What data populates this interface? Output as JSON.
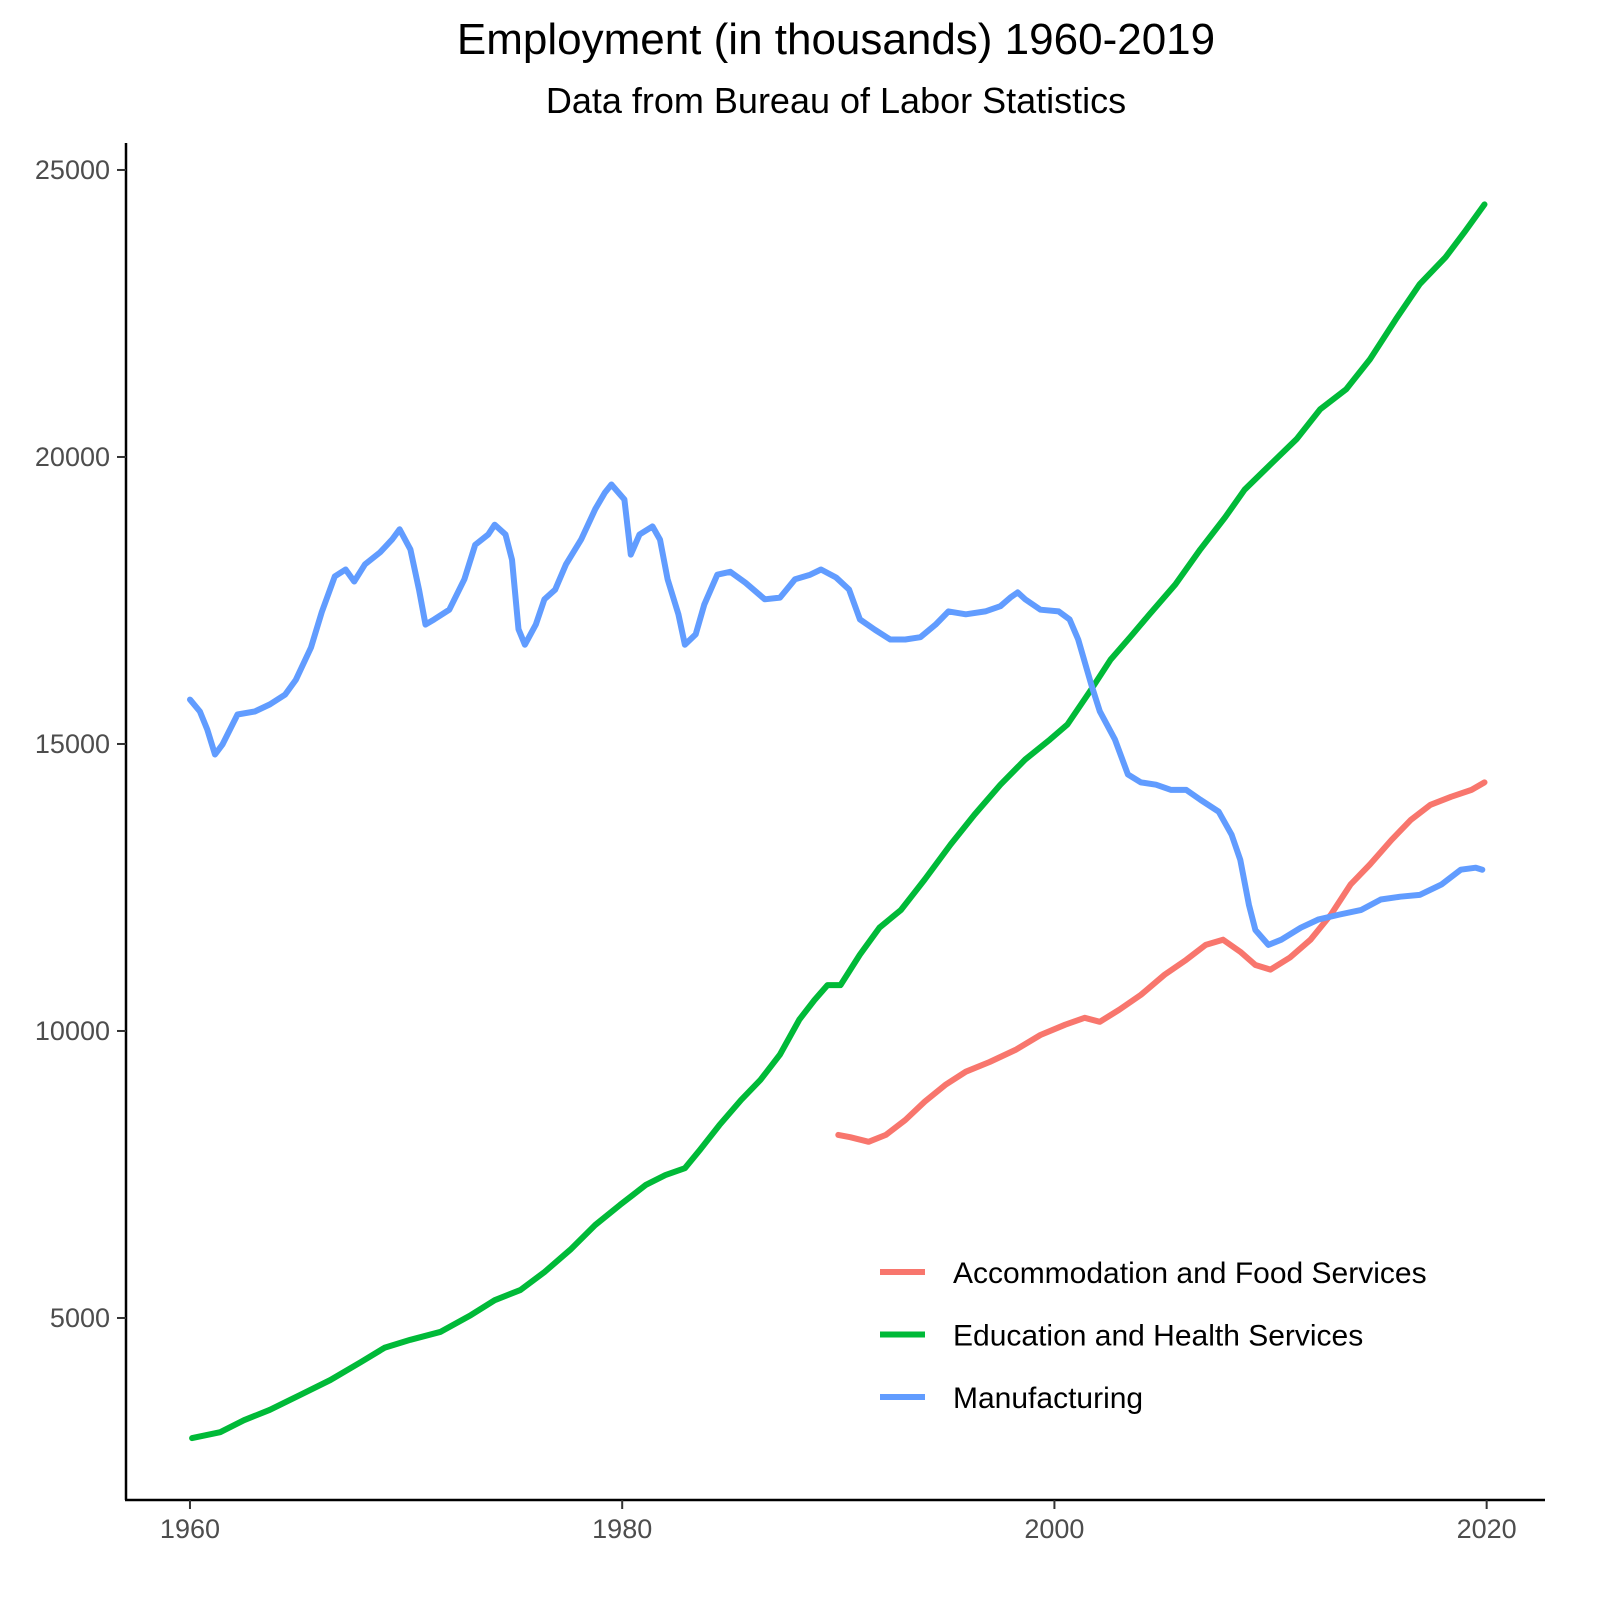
{
  "chart_data": {
    "type": "line",
    "title": "Employment (in thousands) 1960-2019",
    "subtitle": "Data from Bureau of Labor Statistics",
    "xlabel": "",
    "ylabel": "",
    "xlim": [
      1957.04,
      2022.7
    ],
    "ylim": [
      1829,
      25470
    ],
    "xticks": [
      1960,
      1980,
      2000,
      2020
    ],
    "xtick_labels": [
      "1960",
      "1980",
      "2000",
      "2020"
    ],
    "yticks": [
      5000,
      10000,
      15000,
      20000,
      25000
    ],
    "ytick_labels": [
      "5000",
      "10000",
      "15000",
      "20000",
      "25000"
    ],
    "grid": false,
    "legend_placement": "bottom-right",
    "series": [
      {
        "name": "Accommodation and Food Services",
        "color": "#F8766D",
        "x": [
          1990.0,
          1990.55,
          1991.4,
          1992.2,
          1993.1,
          1994.0,
          1994.95,
          1995.9,
          1997.0,
          1998.2,
          1999.35,
          2000.5,
          2001.4,
          2002.1,
          2003.0,
          2004.0,
          2005.1,
          2006.1,
          2007.0,
          2007.8,
          2008.6,
          2009.3,
          2010.0,
          2010.9,
          2011.85,
          2012.8,
          2013.7,
          2014.6,
          2015.6,
          2016.5,
          2017.4,
          2018.35,
          2019.3,
          2019.9
        ],
        "y": [
          8190,
          8150,
          8070,
          8190,
          8450,
          8770,
          9060,
          9290,
          9460,
          9670,
          9930,
          10110,
          10230,
          10160,
          10370,
          10630,
          10980,
          11240,
          11500,
          11590,
          11380,
          11150,
          11070,
          11280,
          11590,
          12030,
          12550,
          12900,
          13330,
          13680,
          13940,
          14080,
          14200,
          14330
        ]
      },
      {
        "name": "Education and Health Services",
        "color": "#00BA38",
        "x": [
          1960.1,
          1961.4,
          1962.5,
          1963.7,
          1965.1,
          1966.5,
          1967.9,
          1969.0,
          1970.2,
          1971.6,
          1973.0,
          1974.1,
          1975.3,
          1976.4,
          1977.6,
          1978.75,
          1979.9,
          1981.1,
          1982.0,
          1982.9,
          1983.6,
          1984.5,
          1985.5,
          1986.4,
          1987.3,
          1988.2,
          1988.9,
          1989.5,
          1990.1,
          1991.0,
          1991.9,
          1992.9,
          1994.0,
          1995.2,
          1996.3,
          1997.5,
          1998.65,
          1999.8,
          2000.6,
          2001.7,
          2002.6,
          2003.5,
          2004.4,
          2005.6,
          2006.75,
          2007.9,
          2008.8,
          2010.0,
          2011.2,
          2012.3,
          2013.5,
          2014.6,
          2015.8,
          2016.9,
          2018.1,
          2019.0,
          2019.9
        ],
        "y": [
          2908,
          3010,
          3220,
          3400,
          3660,
          3920,
          4230,
          4480,
          4620,
          4760,
          5050,
          5310,
          5490,
          5800,
          6190,
          6620,
          6970,
          7320,
          7490,
          7610,
          7930,
          8360,
          8800,
          9150,
          9590,
          10200,
          10540,
          10800,
          10800,
          11330,
          11800,
          12110,
          12640,
          13250,
          13770,
          14290,
          14730,
          15080,
          15340,
          15950,
          16470,
          16860,
          17260,
          17780,
          18390,
          18950,
          19430,
          19870,
          20310,
          20830,
          21180,
          21700,
          22400,
          23010,
          23480,
          23930,
          24400
        ]
      },
      {
        "name": "Manufacturing",
        "color": "#619CFF",
        "x": [
          1960.0,
          1960.46,
          1960.8,
          1961.16,
          1961.5,
          1962.2,
          1963.0,
          1963.7,
          1964.4,
          1964.9,
          1965.6,
          1966.1,
          1966.7,
          1967.2,
          1967.6,
          1968.1,
          1968.8,
          1969.35,
          1969.7,
          1970.2,
          1970.6,
          1970.9,
          1971.3,
          1972.0,
          1972.7,
          1973.2,
          1973.8,
          1974.1,
          1974.6,
          1974.9,
          1975.2,
          1975.5,
          1976.0,
          1976.4,
          1976.9,
          1977.4,
          1978.1,
          1978.75,
          1979.2,
          1979.5,
          1980.1,
          1980.4,
          1980.8,
          1981.4,
          1981.75,
          1982.1,
          1982.6,
          1982.9,
          1983.4,
          1983.8,
          1984.4,
          1985.0,
          1985.7,
          1986.6,
          1987.3,
          1988.0,
          1988.7,
          1989.2,
          1989.9,
          1990.5,
          1991.0,
          1991.7,
          1992.4,
          1993.1,
          1993.8,
          1994.5,
          1995.1,
          1995.9,
          1996.8,
          1997.5,
          1997.96,
          1998.3,
          1998.65,
          1999.35,
          2000.2,
          2000.7,
          2001.1,
          2001.7,
          2002.1,
          2002.8,
          2003.4,
          2004.0,
          2004.7,
          2005.4,
          2006.1,
          2006.75,
          2007.6,
          2008.2,
          2008.6,
          2009.0,
          2009.3,
          2009.9,
          2010.5,
          2011.4,
          2012.2,
          2013.2,
          2014.2,
          2015.1,
          2016.0,
          2016.9,
          2017.9,
          2018.8,
          2019.5,
          2019.8
        ],
        "y": [
          15774,
          15565,
          15251,
          14816,
          14990,
          15513,
          15565,
          15690,
          15860,
          16120,
          16680,
          17300,
          17920,
          18040,
          17830,
          18130,
          18340,
          18560,
          18740,
          18390,
          17690,
          17080,
          17170,
          17340,
          17870,
          18470,
          18650,
          18820,
          18650,
          18210,
          17000,
          16730,
          17080,
          17520,
          17690,
          18130,
          18560,
          19090,
          19380,
          19520,
          19260,
          18300,
          18650,
          18790,
          18560,
          17870,
          17260,
          16730,
          16910,
          17430,
          17950,
          18000,
          17810,
          17520,
          17550,
          17870,
          17950,
          18040,
          17900,
          17690,
          17170,
          16990,
          16820,
          16820,
          16860,
          17080,
          17310,
          17260,
          17310,
          17400,
          17550,
          17640,
          17520,
          17340,
          17310,
          17170,
          16820,
          16040,
          15570,
          15080,
          14470,
          14330,
          14290,
          14200,
          14200,
          14030,
          13820,
          13420,
          12980,
          12200,
          11760,
          11500,
          11590,
          11800,
          11940,
          12030,
          12110,
          12290,
          12340,
          12370,
          12550,
          12810,
          12845,
          12810
        ]
      }
    ]
  }
}
